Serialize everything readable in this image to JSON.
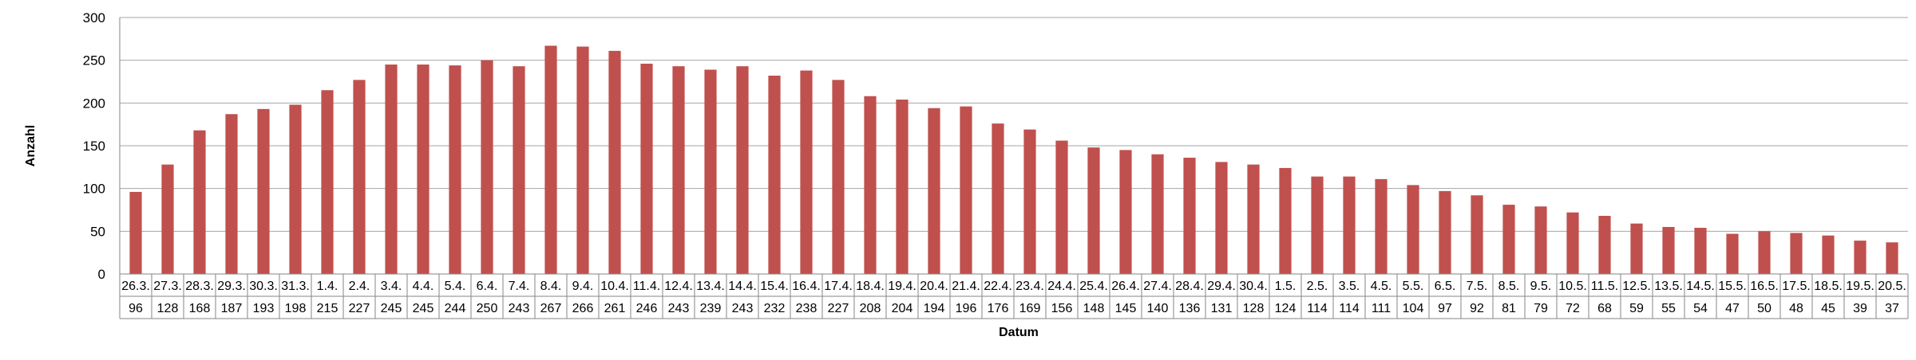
{
  "chart_data": {
    "type": "bar",
    "title": "",
    "xlabel": "Datum",
    "ylabel": "Anzahl",
    "ylim": [
      0,
      300
    ],
    "yticks": [
      0,
      50,
      100,
      150,
      200,
      250,
      300
    ],
    "grid": true,
    "legend": "none",
    "bar_color": "#c0504d",
    "categories": [
      "26.3.",
      "27.3.",
      "28.3.",
      "29.3.",
      "30.3.",
      "31.3.",
      "1.4.",
      "2.4.",
      "3.4.",
      "4.4.",
      "5.4.",
      "6.4.",
      "7.4.",
      "8.4.",
      "9.4.",
      "10.4.",
      "11.4.",
      "12.4.",
      "13.4.",
      "14.4.",
      "15.4.",
      "16.4.",
      "17.4.",
      "18.4.",
      "19.4.",
      "20.4.",
      "21.4.",
      "22.4.",
      "23.4.",
      "24.4.",
      "25.4.",
      "26.4.",
      "27.4.",
      "28.4.",
      "29.4.",
      "30.4.",
      "1.5.",
      "2.5.",
      "3.5.",
      "4.5.",
      "5.5.",
      "6.5.",
      "7.5.",
      "8.5.",
      "9.5.",
      "10.5.",
      "11.5.",
      "12.5.",
      "13.5.",
      "14.5.",
      "15.5.",
      "16.5.",
      "17.5.",
      "18.5.",
      "19.5.",
      "20.5."
    ],
    "values": [
      96,
      128,
      168,
      187,
      193,
      198,
      215,
      227,
      245,
      245,
      244,
      250,
      243,
      267,
      266,
      261,
      246,
      243,
      239,
      243,
      232,
      238,
      227,
      208,
      204,
      194,
      196,
      176,
      169,
      156,
      148,
      145,
      140,
      136,
      131,
      128,
      124,
      114,
      114,
      111,
      104,
      97,
      92,
      81,
      79,
      72,
      68,
      59,
      55,
      54,
      47,
      50,
      48,
      45,
      39,
      37
    ]
  }
}
